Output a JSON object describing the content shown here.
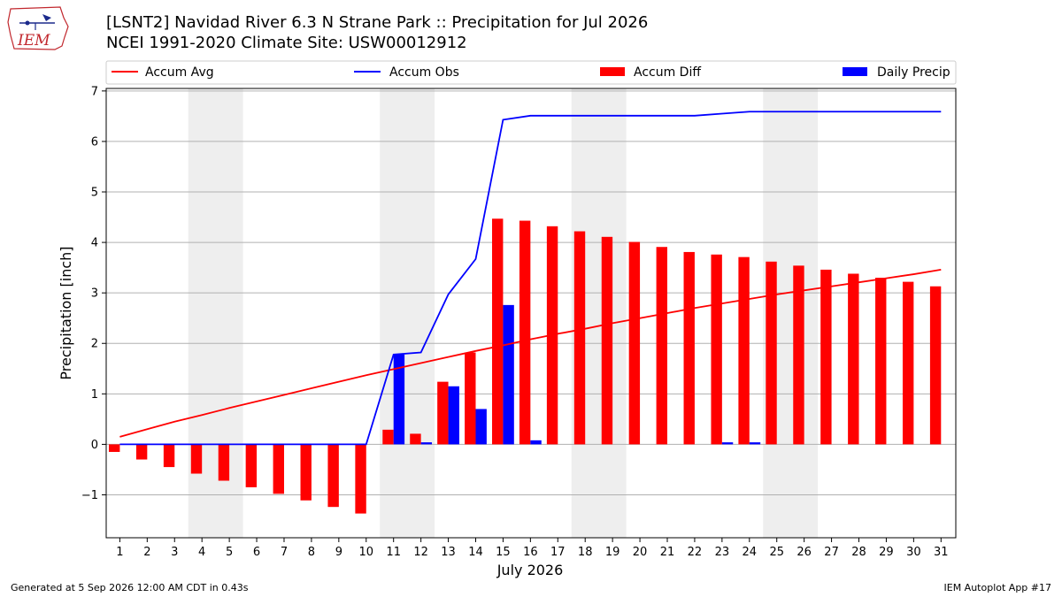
{
  "header": {
    "title_line1": "[LSNT2] Navidad River 6.3 N Strane Park :: Precipitation for Jul 2026",
    "title_line2": "NCEI 1991-2020 Climate Site: USW00012912"
  },
  "logo": {
    "text": "IEM"
  },
  "footer": {
    "generated": "Generated at 5 Sep 2026 12:00 AM CDT in 0.43s",
    "app": "IEM Autoplot App #17"
  },
  "colors": {
    "accum_avg": "#ff0000",
    "accum_obs": "#0000ff",
    "accum_diff": "#ff0000",
    "daily_precip": "#0000ff",
    "weekend_shade": "#eeeeee",
    "grid": "#b0b0b0"
  },
  "chart_data": {
    "type": "bar",
    "xlabel": "July 2026",
    "ylabel": "Precipitation [inch]",
    "ylim": [
      -1.85,
      7.05
    ],
    "yticks": [
      -1,
      0,
      1,
      2,
      3,
      4,
      5,
      6,
      7
    ],
    "ytick_labels": [
      "−1",
      "0",
      "1",
      "2",
      "3",
      "4",
      "5",
      "6",
      "7"
    ],
    "grid": "horizontal",
    "legend_position": "top",
    "days": [
      1,
      2,
      3,
      4,
      5,
      6,
      7,
      8,
      9,
      10,
      11,
      12,
      13,
      14,
      15,
      16,
      17,
      18,
      19,
      20,
      21,
      22,
      23,
      24,
      25,
      26,
      27,
      28,
      29,
      30,
      31
    ],
    "weekend_bands": [
      [
        4,
        5
      ],
      [
        11,
        12
      ],
      [
        18,
        19
      ],
      [
        25,
        26
      ]
    ],
    "series": [
      {
        "name": "Accum Avg",
        "kind": "line",
        "values": [
          0.15,
          0.3,
          0.45,
          0.58,
          0.72,
          0.85,
          0.98,
          1.11,
          1.24,
          1.37,
          1.49,
          1.61,
          1.73,
          1.85,
          1.96,
          2.08,
          2.19,
          2.29,
          2.4,
          2.5,
          2.6,
          2.7,
          2.79,
          2.88,
          2.97,
          3.05,
          3.13,
          3.21,
          3.29,
          3.37,
          3.46
        ]
      },
      {
        "name": "Accum Obs",
        "kind": "line",
        "values": [
          0,
          0,
          0,
          0,
          0,
          0,
          0,
          0,
          0,
          0,
          1.78,
          1.82,
          2.97,
          3.67,
          6.43,
          6.51,
          6.51,
          6.51,
          6.51,
          6.51,
          6.51,
          6.51,
          6.55,
          6.59,
          6.59,
          6.59,
          6.59,
          6.59,
          6.59,
          6.59,
          6.59
        ]
      },
      {
        "name": "Accum Diff",
        "kind": "bar",
        "values": [
          -0.15,
          -0.3,
          -0.45,
          -0.58,
          -0.72,
          -0.85,
          -0.98,
          -1.11,
          -1.24,
          -1.37,
          0.29,
          0.21,
          1.24,
          1.82,
          4.47,
          4.43,
          4.32,
          4.22,
          4.11,
          4.01,
          3.91,
          3.81,
          3.76,
          3.71,
          3.62,
          3.54,
          3.46,
          3.38,
          3.3,
          3.22,
          3.13
        ]
      },
      {
        "name": "Daily Precip",
        "kind": "bar",
        "values": [
          0,
          0,
          0,
          0,
          0,
          0,
          0,
          0,
          0,
          0,
          1.78,
          0.04,
          1.15,
          0.7,
          2.76,
          0.08,
          0,
          0,
          0,
          0,
          0,
          0,
          0.04,
          0.04,
          0,
          0,
          0,
          0,
          0,
          0,
          0
        ]
      }
    ]
  }
}
